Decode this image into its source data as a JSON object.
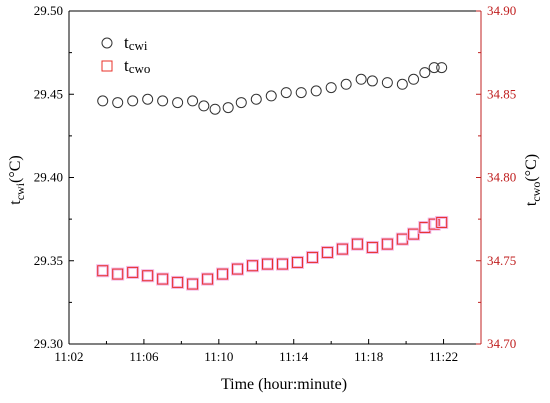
{
  "chart_data": {
    "type": "scatter",
    "xlabel": "Time (hour:minute)",
    "ylabel_left": {
      "main": "t",
      "sub": "cwi",
      "unit": "(°C)"
    },
    "ylabel_right": {
      "main": "t",
      "sub": "cwo",
      "unit": "(°C)"
    },
    "x_tick_labels": [
      "11:02",
      "11:06",
      "11:10",
      "11:14",
      "11:18",
      "11:22"
    ],
    "x_tick_minutes": [
      2,
      6,
      10,
      14,
      18,
      22
    ],
    "xlim_minutes": [
      2,
      24
    ],
    "y_left_ticks": [
      "29.30",
      "29.35",
      "29.40",
      "29.45",
      "29.50"
    ],
    "y_left_lim": [
      29.3,
      29.5
    ],
    "y_right_ticks": [
      "34.70",
      "34.75",
      "34.80",
      "34.85",
      "34.90"
    ],
    "y_right_lim": [
      34.7,
      34.9
    ],
    "grid": false,
    "legend_position": "top-left",
    "colors": {
      "cwi": "#333333",
      "cwo": "#e8302a",
      "cwo_halo": "#f2b6e6",
      "right_axis": "#c02020"
    },
    "series": [
      {
        "name": "cwi",
        "label_main": "t",
        "label_sub": "cwi",
        "axis": "left",
        "marker": "circle",
        "x": [
          3.8,
          4.6,
          5.4,
          6.2,
          7.0,
          7.8,
          8.6,
          9.2,
          9.8,
          10.5,
          11.2,
          12.0,
          12.8,
          13.6,
          14.4,
          15.2,
          16.0,
          16.8,
          17.6,
          18.2,
          19.0,
          19.8,
          20.4,
          21.0,
          21.5,
          21.9
        ],
        "y": [
          29.446,
          29.445,
          29.446,
          29.447,
          29.446,
          29.445,
          29.446,
          29.443,
          29.441,
          29.442,
          29.445,
          29.447,
          29.449,
          29.451,
          29.451,
          29.452,
          29.454,
          29.456,
          29.459,
          29.458,
          29.457,
          29.456,
          29.459,
          29.463,
          29.466,
          29.466
        ]
      },
      {
        "name": "cwo",
        "label_main": "t",
        "label_sub": "cwo",
        "axis": "right",
        "marker": "square",
        "x": [
          3.8,
          4.6,
          5.4,
          6.2,
          7.0,
          7.8,
          8.6,
          9.4,
          10.2,
          11.0,
          11.8,
          12.6,
          13.4,
          14.2,
          15.0,
          15.8,
          16.6,
          17.4,
          18.2,
          19.0,
          19.8,
          20.4,
          21.0,
          21.5,
          21.9
        ],
        "y": [
          34.744,
          34.742,
          34.743,
          34.741,
          34.739,
          34.737,
          34.736,
          34.739,
          34.742,
          34.745,
          34.747,
          34.748,
          34.748,
          34.749,
          34.752,
          34.755,
          34.757,
          34.76,
          34.758,
          34.76,
          34.763,
          34.766,
          34.77,
          34.772,
          34.773
        ]
      }
    ]
  }
}
